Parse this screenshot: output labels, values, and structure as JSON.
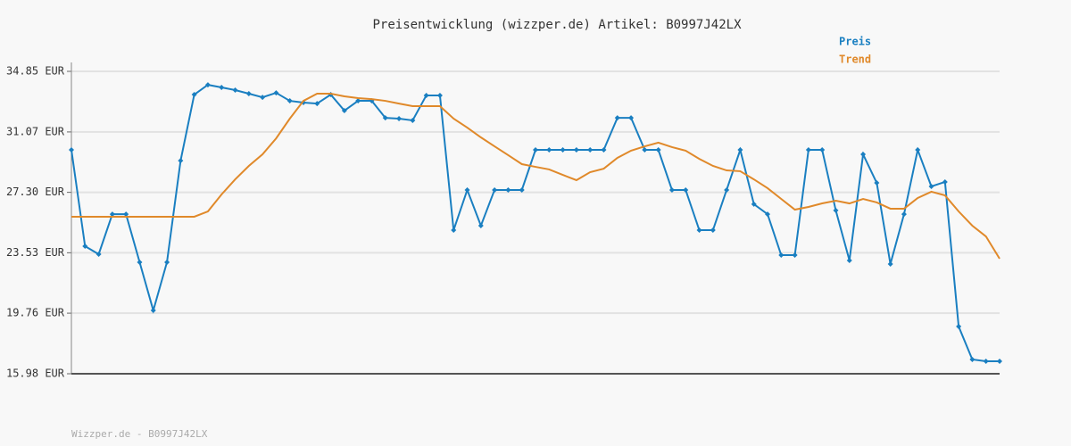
{
  "chart_data": {
    "type": "line",
    "title": "Preisentwicklung (wizzper.de) Artikel: B0997J42LX",
    "footer": "Wizzper.de - B0997J42LX",
    "ylim": [
      15.98,
      34.85
    ],
    "yticks": [
      {
        "value": 15.98,
        "label": "15.98 EUR"
      },
      {
        "value": 19.76,
        "label": "19.76 EUR"
      },
      {
        "value": 23.53,
        "label": "23.53 EUR"
      },
      {
        "value": 27.3,
        "label": "27.30 EUR"
      },
      {
        "value": 31.07,
        "label": "31.07 EUR"
      },
      {
        "value": 34.85,
        "label": "34.85 EUR"
      }
    ],
    "grid": true,
    "legend": "top-right",
    "series": [
      {
        "name": "Preis",
        "color": "#1a7fc1",
        "markers": true,
        "values": [
          29.95,
          23.94,
          23.44,
          25.94,
          25.94,
          22.94,
          19.93,
          22.94,
          29.28,
          33.4,
          34.01,
          33.85,
          33.68,
          33.46,
          33.23,
          33.51,
          33.01,
          32.9,
          32.84,
          33.4,
          32.4,
          33.01,
          33.01,
          31.95,
          31.9,
          31.79,
          33.35,
          33.35,
          24.94,
          27.45,
          25.22,
          27.45,
          27.45,
          27.45,
          29.95,
          29.95,
          29.95,
          29.95,
          29.95,
          29.95,
          31.95,
          31.95,
          29.95,
          29.95,
          27.45,
          27.45,
          24.94,
          24.94,
          27.45,
          29.95,
          26.56,
          25.94,
          23.38,
          23.38,
          29.95,
          29.95,
          26.17,
          23.05,
          29.67,
          27.89,
          22.83,
          25.94,
          29.95,
          27.67,
          27.95,
          18.93,
          16.87,
          16.76,
          16.76
        ]
      },
      {
        "name": "Trend",
        "color": "#e0892a",
        "markers": false,
        "values": [
          25.78,
          25.78,
          25.78,
          25.78,
          25.78,
          25.78,
          25.78,
          25.78,
          25.78,
          25.78,
          26.11,
          27.17,
          28.11,
          28.95,
          29.67,
          30.67,
          31.9,
          33.01,
          33.46,
          33.46,
          33.29,
          33.18,
          33.12,
          33.01,
          32.84,
          32.68,
          32.68,
          32.68,
          31.9,
          31.34,
          30.73,
          30.17,
          29.62,
          29.06,
          28.89,
          28.73,
          28.39,
          28.06,
          28.56,
          28.78,
          29.45,
          29.9,
          30.17,
          30.4,
          30.12,
          29.9,
          29.39,
          28.95,
          28.67,
          28.62,
          28.11,
          27.56,
          26.89,
          26.22,
          26.39,
          26.61,
          26.78,
          26.61,
          26.89,
          26.67,
          26.28,
          26.28,
          26.95,
          27.34,
          27.11,
          26.11,
          25.22,
          24.55,
          23.16
        ]
      }
    ]
  }
}
